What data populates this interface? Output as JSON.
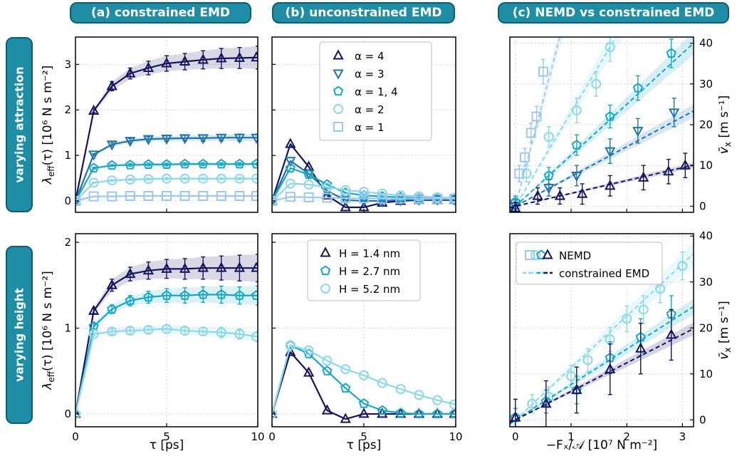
{
  "headers": {
    "a": "(a) constrained EMD",
    "b": "(b) unconstrained EMD",
    "c": "(c) NEMD vs constrained EMD"
  },
  "row_labels": {
    "top": "varying attraction",
    "bottom": "varying height"
  },
  "axis_labels": {
    "tau": "τ [ps]",
    "lambda_main": "λ",
    "lambda_sub": "eff",
    "lambda_rest": "(τ) [10⁶ N s m⁻²]",
    "v_main": "v̄",
    "v_sub": "x",
    "v_rest": " [m s⁻¹]",
    "force": "−Fₓ/𝒜 [10⁷ N m⁻²]"
  },
  "legends": {
    "attraction": [
      "α = 4",
      "α = 3",
      "α = 1, 4",
      "α = 2",
      "α = 1"
    ],
    "height": [
      "H = 1.4 nm",
      "H = 2.7 nm",
      "H = 5.2 nm"
    ],
    "method": [
      "NEMD",
      "constrained EMD"
    ]
  },
  "colors": {
    "navy": "#14145e",
    "blue": "#1f74a8",
    "teal": "#16a8c4",
    "light": "#8bd8ea",
    "pale": "#9cc8f0",
    "header_bg": "#1d8ea6"
  },
  "chart_data": [
    {
      "id": "a_top",
      "type": "line",
      "xlim": [
        0,
        10
      ],
      "ylim": [
        -0.25,
        3.6
      ],
      "xticks": [
        0,
        5,
        10
      ],
      "yticks": [
        0,
        1,
        2,
        3
      ],
      "grid": true,
      "series": [
        {
          "name": "α = 4",
          "marker": "triangle-up",
          "color": "#14145e",
          "x": [
            0,
            1,
            2,
            3,
            4,
            5,
            6,
            7,
            8,
            9,
            10
          ],
          "y": [
            0,
            1.98,
            2.52,
            2.8,
            2.92,
            3.02,
            3.06,
            3.1,
            3.13,
            3.14,
            3.15
          ],
          "err": [
            0,
            0.04,
            0.1,
            0.12,
            0.15,
            0.17,
            0.18,
            0.2,
            0.22,
            0.23,
            0.25
          ]
        },
        {
          "name": "α = 3",
          "marker": "triangle-down",
          "color": "#1f74a8",
          "x": [
            0,
            1,
            2,
            3,
            4,
            5,
            6,
            7,
            8,
            9,
            10
          ],
          "y": [
            0,
            1.02,
            1.24,
            1.32,
            1.36,
            1.37,
            1.38,
            1.38,
            1.39,
            1.39,
            1.39
          ],
          "err": [
            0,
            0.02,
            0.04,
            0.05,
            0.05,
            0.06,
            0.06,
            0.07,
            0.07,
            0.08,
            0.08
          ]
        },
        {
          "name": "α = 1, 4",
          "marker": "pentagon",
          "color": "#16a8c4",
          "x": [
            0,
            1,
            2,
            3,
            4,
            5,
            6,
            7,
            8,
            9,
            10
          ],
          "y": [
            0,
            0.72,
            0.78,
            0.79,
            0.8,
            0.8,
            0.81,
            0.81,
            0.81,
            0.81,
            0.81
          ],
          "err": [
            0,
            0.02,
            0.02,
            0.03,
            0.03,
            0.03,
            0.03,
            0.03,
            0.03,
            0.03,
            0.03
          ]
        },
        {
          "name": "α = 2",
          "marker": "circle",
          "color": "#8bd8ea",
          "x": [
            0,
            1,
            2,
            3,
            4,
            5,
            6,
            7,
            8,
            9,
            10
          ],
          "y": [
            0,
            0.4,
            0.45,
            0.47,
            0.48,
            0.49,
            0.49,
            0.49,
            0.49,
            0.49,
            0.49
          ],
          "err": [
            0,
            0.01,
            0.02,
            0.02,
            0.02,
            0.02,
            0.02,
            0.02,
            0.02,
            0.02,
            0.02
          ]
        },
        {
          "name": "α = 1",
          "marker": "square",
          "color": "#9cc8f0",
          "x": [
            0,
            1,
            2,
            3,
            4,
            5,
            6,
            7,
            8,
            9,
            10
          ],
          "y": [
            0,
            0.1,
            0.1,
            0.11,
            0.11,
            0.11,
            0.11,
            0.11,
            0.11,
            0.11,
            0.11
          ],
          "err": [
            0,
            0,
            0,
            0,
            0,
            0,
            0,
            0,
            0,
            0,
            0
          ]
        }
      ]
    },
    {
      "id": "b_top",
      "type": "line",
      "xlim": [
        0,
        10
      ],
      "ylim": [
        -0.25,
        3.6
      ],
      "xticks": [
        0,
        5,
        10
      ],
      "yticks": [
        0,
        1,
        2,
        3
      ],
      "grid": true,
      "legend": "attraction",
      "series": [
        {
          "name": "α = 4",
          "marker": "triangle-up",
          "color": "#14145e",
          "x": [
            0,
            1,
            2,
            3,
            4,
            5,
            6,
            7,
            8,
            9,
            10
          ],
          "y": [
            0,
            1.25,
            0.75,
            0.12,
            -0.14,
            -0.14,
            -0.04,
            0.0,
            0.02,
            0.02,
            0.02
          ]
        },
        {
          "name": "α = 3",
          "marker": "triangle-down",
          "color": "#1f74a8",
          "x": [
            0,
            1,
            2,
            3,
            4,
            5,
            6,
            7,
            8,
            9,
            10
          ],
          "y": [
            0,
            0.88,
            0.6,
            0.22,
            0.02,
            0.0,
            0.0,
            0.02,
            0.03,
            0.03,
            0.03
          ]
        },
        {
          "name": "α = 1, 4",
          "marker": "pentagon",
          "color": "#16a8c4",
          "x": [
            0,
            1,
            2,
            3,
            4,
            5,
            6,
            7,
            8,
            9,
            10
          ],
          "y": [
            0,
            0.72,
            0.58,
            0.36,
            0.18,
            0.12,
            0.1,
            0.08,
            0.06,
            0.06,
            0.06
          ]
        },
        {
          "name": "α = 2",
          "marker": "circle",
          "color": "#8bd8ea",
          "x": [
            0,
            1,
            2,
            3,
            4,
            5,
            6,
            7,
            8,
            9,
            10
          ],
          "y": [
            0,
            0.38,
            0.36,
            0.3,
            0.24,
            0.2,
            0.16,
            0.12,
            0.1,
            0.08,
            0.07
          ]
        },
        {
          "name": "α = 1",
          "marker": "square",
          "color": "#9cc8f0",
          "x": [
            0,
            1,
            2,
            3,
            4,
            5,
            6,
            7,
            8,
            9,
            10
          ],
          "y": [
            0,
            0.09,
            0.08,
            0.07,
            0.06,
            0.06,
            0.05,
            0.05,
            0.05,
            0.05,
            0.05
          ]
        }
      ]
    },
    {
      "id": "c_top",
      "type": "scatter",
      "xlim": [
        -0.1,
        3.2
      ],
      "ylim": [
        -1.5,
        41.5
      ],
      "xticks": [
        0,
        1,
        2,
        3
      ],
      "yticks": [
        0,
        10,
        20,
        30,
        40
      ],
      "grid": true,
      "series": [
        {
          "name": "α = 1",
          "marker": "square",
          "color": "#9cc8f0",
          "slope": 52,
          "x": [
            0.0,
            0.07,
            0.17,
            0.28,
            0.38,
            0.5
          ],
          "y": [
            0.5,
            8,
            12,
            18,
            22,
            33
          ],
          "err": [
            1.5,
            2,
            2.2,
            2.4,
            2.5,
            3
          ]
        },
        {
          "name": "α = 2",
          "marker": "circle",
          "color": "#8bd8ea",
          "slope": 23,
          "x": [
            0.0,
            0.2,
            0.6,
            1.1,
            1.45,
            1.7
          ],
          "y": [
            1,
            8,
            17,
            23.5,
            30,
            39
          ],
          "err": [
            1.5,
            2,
            2.5,
            3,
            3,
            3.5
          ]
        },
        {
          "name": "α = 1, 4",
          "marker": "pentagon",
          "color": "#16a8c4",
          "slope": 12.5,
          "x": [
            0.0,
            0.6,
            1.1,
            1.7,
            2.2,
            2.8
          ],
          "y": [
            1,
            7.5,
            15,
            22,
            29,
            37.5
          ],
          "err": [
            1.5,
            2,
            2.5,
            2.8,
            3,
            3.5
          ]
        },
        {
          "name": "α = 3",
          "marker": "triangle-down",
          "color": "#1f74a8",
          "slope": 7.3,
          "x": [
            0.0,
            0.6,
            1.1,
            1.7,
            2.2,
            2.85
          ],
          "y": [
            0,
            4.5,
            7.5,
            13.5,
            18.5,
            23
          ],
          "err": [
            1.5,
            2,
            2.5,
            3,
            3,
            3.5
          ]
        },
        {
          "name": "α = 4",
          "marker": "triangle-up",
          "color": "#14145e",
          "slope": 3.15,
          "x": [
            0.0,
            0.4,
            0.8,
            1.2,
            1.7,
            2.3,
            2.75,
            3.05
          ],
          "y": [
            -0.5,
            2.5,
            2.5,
            3,
            5,
            7,
            8.5,
            10
          ],
          "err": [
            1.5,
            2,
            2,
            2.5,
            2.5,
            3,
            3,
            3
          ]
        }
      ]
    },
    {
      "id": "a_bot",
      "type": "line",
      "xlim": [
        0,
        10
      ],
      "ylim": [
        -0.15,
        2.1
      ],
      "xticks": [
        0,
        5,
        10
      ],
      "yticks": [
        0,
        1,
        2
      ],
      "grid": true,
      "series": [
        {
          "name": "H = 1.4 nm",
          "marker": "triangle-up",
          "color": "#14145e",
          "x": [
            0,
            1,
            2,
            3,
            4,
            5,
            6,
            7,
            8,
            9,
            10
          ],
          "y": [
            0,
            1.2,
            1.5,
            1.63,
            1.67,
            1.69,
            1.69,
            1.7,
            1.7,
            1.7,
            1.7
          ],
          "err": [
            0,
            0.03,
            0.07,
            0.08,
            0.1,
            0.11,
            0.12,
            0.13,
            0.14,
            0.15,
            0.16
          ]
        },
        {
          "name": "H = 2.7 nm",
          "marker": "pentagon",
          "color": "#16a8c4",
          "x": [
            0,
            1,
            2,
            3,
            4,
            5,
            6,
            7,
            8,
            9,
            10
          ],
          "y": [
            0,
            1.02,
            1.22,
            1.32,
            1.36,
            1.38,
            1.38,
            1.39,
            1.39,
            1.38,
            1.38
          ],
          "err": [
            0,
            0.03,
            0.05,
            0.06,
            0.07,
            0.08,
            0.09,
            0.09,
            0.1,
            0.1,
            0.11
          ]
        },
        {
          "name": "H = 5.2 nm",
          "marker": "circle",
          "color": "#8bd8ea",
          "x": [
            0,
            1,
            2,
            3,
            4,
            5,
            6,
            7,
            8,
            9,
            10
          ],
          "y": [
            0,
            0.93,
            0.96,
            0.97,
            0.98,
            0.99,
            0.97,
            0.96,
            0.95,
            0.93,
            0.9
          ],
          "err": [
            0,
            0.02,
            0.03,
            0.04,
            0.04,
            0.05,
            0.05,
            0.05,
            0.06,
            0.06,
            0.06
          ]
        }
      ]
    },
    {
      "id": "b_bot",
      "type": "line",
      "xlim": [
        0,
        10
      ],
      "ylim": [
        -0.15,
        2.1
      ],
      "xticks": [
        0,
        5,
        10
      ],
      "yticks": [
        0,
        1,
        2
      ],
      "grid": true,
      "legend": "height",
      "series": [
        {
          "name": "H = 1.4 nm",
          "marker": "triangle-up",
          "color": "#14145e",
          "x": [
            0,
            1,
            2,
            3,
            4,
            5,
            6,
            7,
            8,
            9,
            10
          ],
          "y": [
            0,
            0.72,
            0.48,
            0.04,
            -0.06,
            0.0,
            0.0,
            0.0,
            0.0,
            0.0,
            0.0
          ]
        },
        {
          "name": "H = 2.7 nm",
          "marker": "pentagon",
          "color": "#16a8c4",
          "x": [
            0,
            1,
            2,
            3,
            4,
            5,
            6,
            7,
            8,
            9,
            10
          ],
          "y": [
            0,
            0.8,
            0.7,
            0.5,
            0.3,
            0.12,
            0.04,
            0.01,
            0.0,
            0.0,
            0.0
          ]
        },
        {
          "name": "H = 5.2 nm",
          "marker": "circle",
          "color": "#8bd8ea",
          "x": [
            0,
            1,
            2,
            3,
            4,
            5,
            6,
            7,
            8,
            9,
            10
          ],
          "y": [
            0,
            0.8,
            0.74,
            0.62,
            0.52,
            0.45,
            0.36,
            0.29,
            0.22,
            0.16,
            0.11
          ]
        }
      ]
    },
    {
      "id": "c_bot",
      "type": "scatter",
      "xlim": [
        -0.1,
        3.2
      ],
      "ylim": [
        -1.5,
        40.5
      ],
      "xticks": [
        0,
        1,
        2,
        3
      ],
      "yticks": [
        0,
        10,
        20,
        30,
        40
      ],
      "grid": true,
      "legend": "method",
      "series": [
        {
          "name": "H = 5.2 nm",
          "marker": "circle",
          "color": "#8bd8ea",
          "slope": 11.3,
          "x": [
            0.0,
            0.3,
            0.6,
            1.0,
            1.3,
            1.7,
            2.0,
            2.3,
            2.6,
            3.0
          ],
          "y": [
            0.5,
            3.5,
            5,
            9.5,
            13,
            17.5,
            22,
            24,
            28.5,
            33.5
          ],
          "err": [
            2,
            2,
            2.2,
            2.4,
            2.5,
            2.6,
            2.8,
            3,
            3,
            3
          ]
        },
        {
          "name": "H = 2.7 nm",
          "marker": "pentagon",
          "color": "#16a8c4",
          "slope": 7.7,
          "x": [
            0.0,
            0.55,
            1.1,
            1.7,
            2.25,
            2.8
          ],
          "y": [
            0.5,
            4,
            6.5,
            13.5,
            18,
            23
          ],
          "err": [
            2,
            2.5,
            3,
            3.5,
            4,
            4
          ]
        },
        {
          "name": "H = 1.4 nm",
          "marker": "triangle-up",
          "color": "#14145e",
          "slope": 6.2,
          "x": [
            0.0,
            0.55,
            1.1,
            1.7,
            2.25,
            2.8
          ],
          "y": [
            0.5,
            3.5,
            6.5,
            11,
            15.5,
            18.5
          ],
          "err": [
            4,
            5,
            5,
            5.5,
            5.5,
            5.5
          ]
        }
      ]
    }
  ]
}
